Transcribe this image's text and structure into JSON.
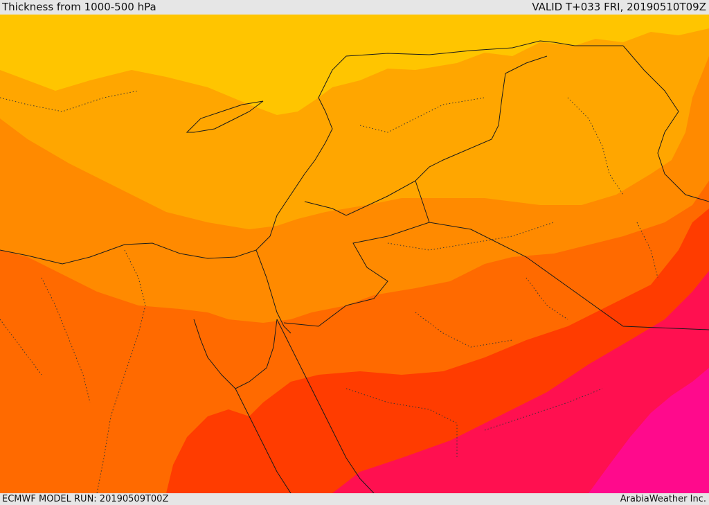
{
  "header": {
    "title": "Thickness from 1000-500 hPa",
    "valid": "VALID T+033 FRI, 20190510T09Z"
  },
  "footer": {
    "model_run": "ECMWF MODEL RUN: 20190509T00Z",
    "credit": "ArabiaWeather Inc."
  },
  "colors": {
    "band_yellow": "#ffc500",
    "band_amber": "#ffa600",
    "band_orange": "#ff8a00",
    "band_darkorange": "#ff6a00",
    "band_red": "#ff3c00",
    "band_crimson": "#ff1050",
    "band_magenta": "#ff0a8c",
    "border_line": "#1a1a1a"
  }
}
